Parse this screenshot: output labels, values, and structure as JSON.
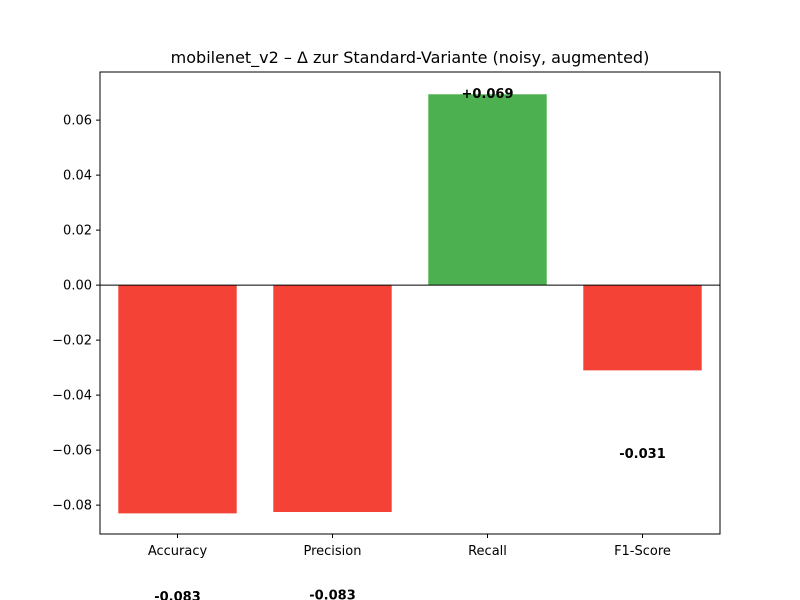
{
  "chart_data": {
    "type": "bar",
    "title": "mobilenet_v2 – Δ zur Standard-Variante (noisy, augmented)",
    "xlabel": "",
    "ylabel": "",
    "categories": [
      "Accuracy",
      "Precision",
      "Recall",
      "F1-Score"
    ],
    "values": [
      -0.083,
      -0.0825,
      0.0694,
      -0.031
    ],
    "data_labels": [
      "-0.083",
      "-0.083",
      "+0.069",
      "-0.031"
    ],
    "ylim": [
      -0.0905,
      0.0775
    ],
    "yticks": [
      -0.08,
      -0.06,
      -0.04,
      -0.02,
      0.0,
      0.02,
      0.04,
      0.06
    ],
    "ytick_labels": [
      "−0.08",
      "−0.06",
      "−0.04",
      "−0.02",
      "0.00",
      "0.02",
      "0.04",
      "0.06"
    ],
    "colors": {
      "positive": "#4caf50",
      "negative": "#f44336"
    },
    "zero_line": true,
    "grid": false,
    "legend": "none"
  }
}
